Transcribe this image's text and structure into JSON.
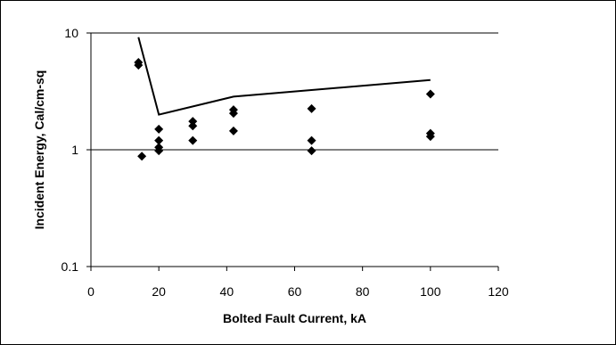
{
  "chart_data": {
    "type": "scatter",
    "title": "",
    "xlabel": "Bolted Fault Current, kA",
    "ylabel": "Incident Energy, Cal/cm-sq",
    "xlim": [
      0,
      120
    ],
    "ylim": [
      0.1,
      10
    ],
    "y_scale": "log",
    "x_ticks": [
      0,
      20,
      40,
      60,
      80,
      100,
      120
    ],
    "y_ticks": [
      0.1,
      1,
      10
    ],
    "x_tick_labels": [
      "0",
      "20",
      "40",
      "60",
      "80",
      "100",
      "120"
    ],
    "y_tick_labels": [
      "0.1",
      "1",
      "10"
    ],
    "grid": "horizontal major lines at 1 and 10",
    "legend": "none",
    "series": [
      {
        "type": "scatter",
        "marker": "diamond",
        "color": "#000000",
        "points": [
          {
            "x": 14,
            "y": 5.6
          },
          {
            "x": 14,
            "y": 5.3
          },
          {
            "x": 15,
            "y": 0.88
          },
          {
            "x": 20,
            "y": 1.5
          },
          {
            "x": 20,
            "y": 1.2
          },
          {
            "x": 20,
            "y": 1.05
          },
          {
            "x": 20,
            "y": 0.98
          },
          {
            "x": 30,
            "y": 1.75
          },
          {
            "x": 30,
            "y": 1.6
          },
          {
            "x": 30,
            "y": 1.2
          },
          {
            "x": 42,
            "y": 2.2
          },
          {
            "x": 42,
            "y": 2.05
          },
          {
            "x": 42,
            "y": 1.45
          },
          {
            "x": 65,
            "y": 2.25
          },
          {
            "x": 65,
            "y": 1.2
          },
          {
            "x": 65,
            "y": 0.98
          },
          {
            "x": 100,
            "y": 3.0
          },
          {
            "x": 100,
            "y": 1.38
          },
          {
            "x": 100,
            "y": 1.3
          }
        ]
      },
      {
        "type": "line",
        "color": "#000000",
        "points": [
          {
            "x": 14,
            "y": 9.2
          },
          {
            "x": 20,
            "y": 2.0
          },
          {
            "x": 42,
            "y": 2.85
          },
          {
            "x": 100,
            "y": 3.95
          }
        ]
      }
    ]
  }
}
